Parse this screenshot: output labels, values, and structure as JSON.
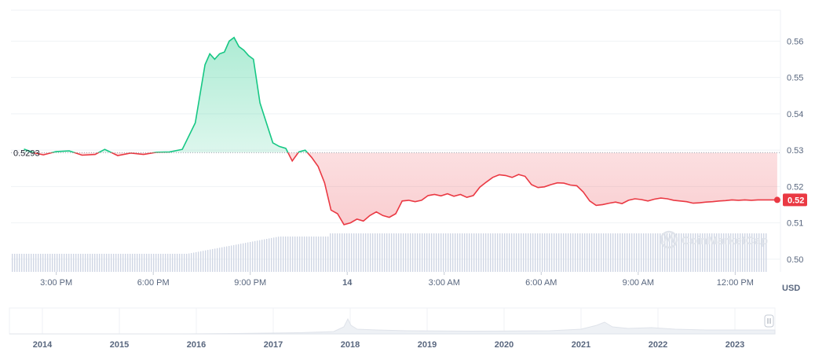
{
  "chart_data": {
    "type": "line",
    "title": "",
    "xlabel": "",
    "ylabel": "USD",
    "ylim": [
      0.4965,
      0.5685
    ],
    "y_ticks": [
      "0.50",
      "0.51",
      "0.52",
      "0.53",
      "0.54",
      "0.55",
      "0.56"
    ],
    "y_tick_values": [
      0.5,
      0.51,
      0.52,
      0.53,
      0.54,
      0.55,
      0.56
    ],
    "x_range_hours": [
      13.6,
      37.4
    ],
    "x_ticks": [
      {
        "label": "3:00 PM",
        "hour": 15,
        "bold": false
      },
      {
        "label": "6:00 PM",
        "hour": 18,
        "bold": false
      },
      {
        "label": "9:00 PM",
        "hour": 21,
        "bold": false
      },
      {
        "label": "14",
        "hour": 24,
        "bold": true
      },
      {
        "label": "3:00 AM",
        "hour": 27,
        "bold": false
      },
      {
        "label": "6:00 AM",
        "hour": 30,
        "bold": false
      },
      {
        "label": "9:00 AM",
        "hour": 33,
        "bold": false
      },
      {
        "label": "12:00 PM",
        "hour": 36,
        "bold": false
      }
    ],
    "reference": {
      "label": "0.5293",
      "value": 0.5293
    },
    "current": {
      "label": "0.52",
      "value": 0.5163
    },
    "colors": {
      "up": "#16c784",
      "down": "#ea3943",
      "volume": "#cfd6e4",
      "grid": "#eff2f5",
      "axis_text": "#58667e"
    },
    "watermark": "CoinMarketCap",
    "series": [
      {
        "x": [
          14.0,
          14.3,
          14.6,
          15.0,
          15.4,
          15.8,
          16.2,
          16.5,
          16.9,
          17.3,
          17.7,
          18.1,
          18.5,
          18.9,
          19.3,
          19.6,
          19.75,
          19.9,
          20.05,
          20.2,
          20.35,
          20.5,
          20.65,
          20.8,
          20.95,
          21.1,
          21.3,
          21.5,
          21.7,
          21.9,
          22.1,
          22.3,
          22.5,
          22.7,
          22.9,
          23.1,
          23.3,
          23.5,
          23.7,
          23.9,
          24.1,
          24.3,
          24.5,
          24.7,
          24.9,
          25.1,
          25.3,
          25.5,
          25.7,
          25.9,
          26.1,
          26.3,
          26.5,
          26.7,
          26.9,
          27.1,
          27.3,
          27.5,
          27.7,
          27.9,
          28.1,
          28.3,
          28.5,
          28.7,
          28.9,
          29.1,
          29.3,
          29.5,
          29.7,
          29.9,
          30.1,
          30.3,
          30.5,
          30.7,
          30.9,
          31.1,
          31.3,
          31.5,
          31.7,
          31.9,
          32.1,
          32.3,
          32.5,
          32.7,
          32.9,
          33.1,
          33.3,
          33.5,
          33.7,
          33.9,
          34.1,
          34.3,
          34.5,
          34.7,
          34.9,
          35.1,
          35.3,
          35.5,
          35.7,
          35.9,
          36.1,
          36.3,
          36.5,
          36.7,
          36.9,
          37.1,
          37.3
        ],
        "y": [
          0.5303,
          0.5293,
          0.5287,
          0.5296,
          0.5298,
          0.5286,
          0.5288,
          0.5302,
          0.5285,
          0.5292,
          0.5288,
          0.5294,
          0.5295,
          0.5302,
          0.5375,
          0.5535,
          0.5565,
          0.555,
          0.5565,
          0.557,
          0.56,
          0.561,
          0.5585,
          0.5575,
          0.556,
          0.555,
          0.543,
          0.5375,
          0.532,
          0.531,
          0.5305,
          0.527,
          0.5295,
          0.53,
          0.528,
          0.5255,
          0.521,
          0.5135,
          0.5125,
          0.5095,
          0.51,
          0.511,
          0.5105,
          0.512,
          0.513,
          0.512,
          0.5115,
          0.5125,
          0.516,
          0.5162,
          0.5158,
          0.5162,
          0.5175,
          0.5178,
          0.5174,
          0.518,
          0.5173,
          0.5178,
          0.517,
          0.5175,
          0.5198,
          0.5212,
          0.5225,
          0.5232,
          0.523,
          0.5225,
          0.5233,
          0.5228,
          0.5205,
          0.5197,
          0.5199,
          0.5205,
          0.521,
          0.5209,
          0.5204,
          0.5202,
          0.5185,
          0.516,
          0.5148,
          0.515,
          0.5154,
          0.5157,
          0.5153,
          0.5162,
          0.5166,
          0.5164,
          0.516,
          0.5165,
          0.5168,
          0.5166,
          0.5162,
          0.516,
          0.5158,
          0.5154,
          0.5155,
          0.5157,
          0.5158,
          0.516,
          0.5161,
          0.5163,
          0.5162,
          0.5163,
          0.5162,
          0.5163,
          0.5163,
          0.5163,
          0.5163
        ]
      }
    ]
  },
  "navigator": {
    "years": [
      "2014",
      "2015",
      "2016",
      "2017",
      "2018",
      "2019",
      "2020",
      "2021",
      "2022",
      "2023"
    ],
    "handle_icon": "pause-handle-icon"
  }
}
